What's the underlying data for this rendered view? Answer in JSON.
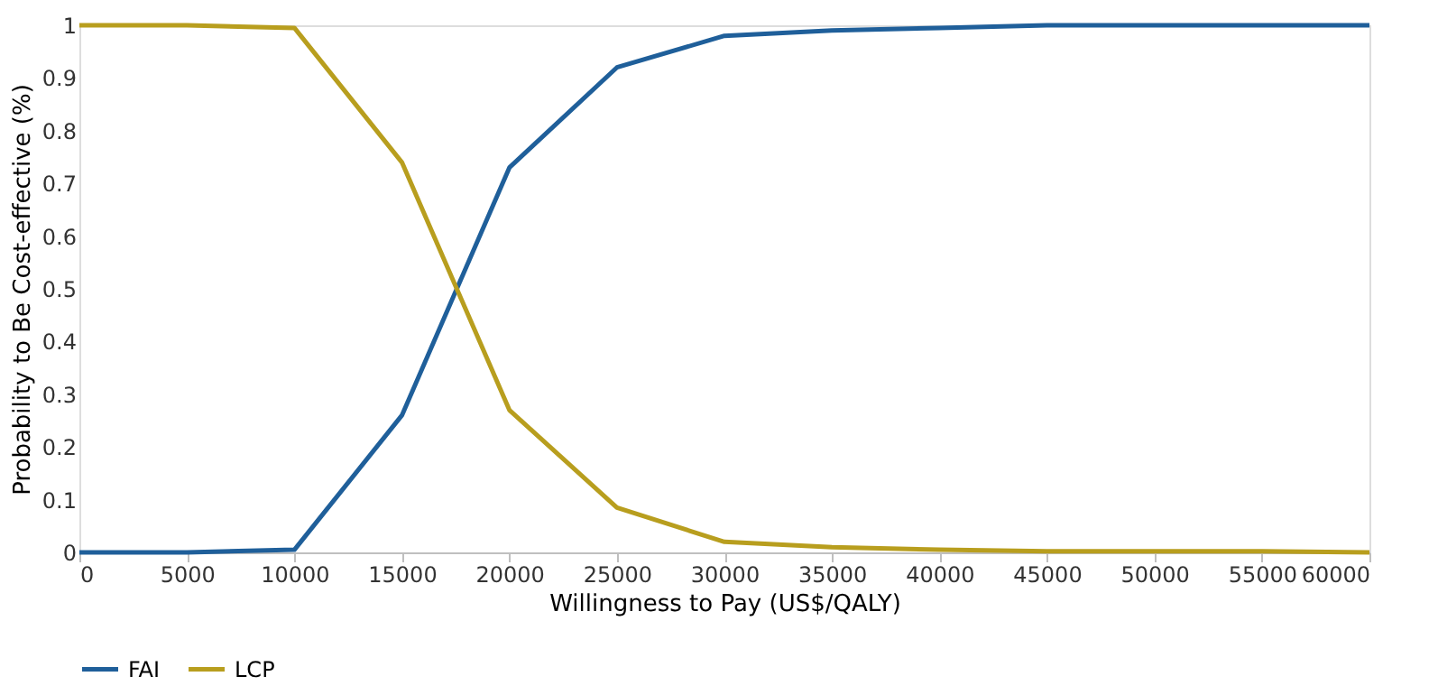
{
  "chart_data": {
    "type": "line",
    "xlabel": "Willingness to Pay (US$/QALY)",
    "ylabel": "Probability to Be Cost-effective (%)",
    "x": [
      0,
      5000,
      10000,
      15000,
      20000,
      25000,
      30000,
      35000,
      40000,
      45000,
      50000,
      55000,
      60000
    ],
    "series": [
      {
        "name": "FAI",
        "color": "#1f5f9a",
        "values": [
          0,
          0,
          0.005,
          0.26,
          0.73,
          0.92,
          0.98,
          0.99,
          0.995,
          1.0,
          1.0,
          1.0,
          1.0
        ]
      },
      {
        "name": "LCP",
        "color": "#b89e1e",
        "values": [
          1.0,
          1.0,
          0.995,
          0.74,
          0.27,
          0.085,
          0.02,
          0.01,
          0.005,
          0.002,
          0.002,
          0.002,
          0
        ]
      }
    ],
    "xlim": [
      0,
      60000
    ],
    "xticks": [
      0,
      5000,
      10000,
      15000,
      20000,
      25000,
      30000,
      35000,
      40000,
      45000,
      50000,
      55000,
      60000
    ],
    "ylim": [
      0,
      1
    ],
    "yticks": [
      0,
      0.1,
      0.2,
      0.3,
      0.4,
      0.5,
      0.6,
      0.7,
      0.8,
      0.9,
      1
    ],
    "grid": false,
    "legend": "bottom",
    "marker": "none",
    "line_style": "solid"
  }
}
